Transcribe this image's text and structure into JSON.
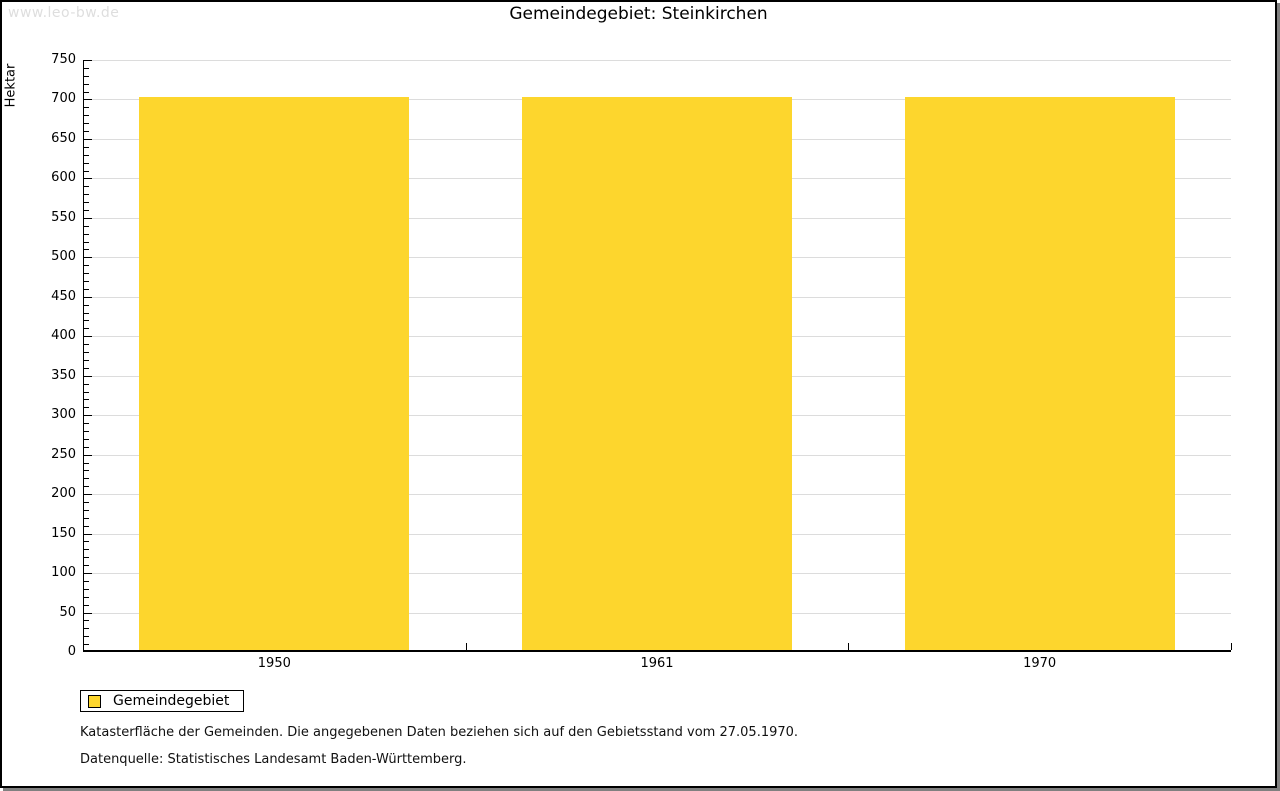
{
  "watermark": "www.leo-bw.de",
  "title": "Gemeindegebiet: Steinkirchen",
  "chart_data": {
    "type": "bar",
    "title": "Gemeindegebiet: Steinkirchen",
    "categories": [
      "1950",
      "1961",
      "1970"
    ],
    "series": [
      {
        "name": "Gemeindegebiet",
        "values": [
          700,
          700,
          700
        ]
      }
    ],
    "xlabel": "",
    "ylabel": "Hektar",
    "ylim": [
      0,
      750
    ],
    "y_major_step": 50,
    "y_minor_step": 10,
    "grid": true,
    "legend_position": "bottom-left",
    "bar_color": "#FDD62D"
  },
  "legend": {
    "label": "Gemeindegebiet"
  },
  "footer": {
    "line1": "Katasterfläche der Gemeinden. Die angegebenen Daten beziehen sich auf den Gebietsstand vom 27.05.1970.",
    "line2": "Datenquelle: Statistisches Landesamt Baden-Württemberg."
  },
  "colors": {
    "bar": "#FDD62D",
    "grid": "#DCDCDC",
    "axis": "#000000",
    "watermark": "#DEDEDE",
    "shadow": "#808080"
  }
}
